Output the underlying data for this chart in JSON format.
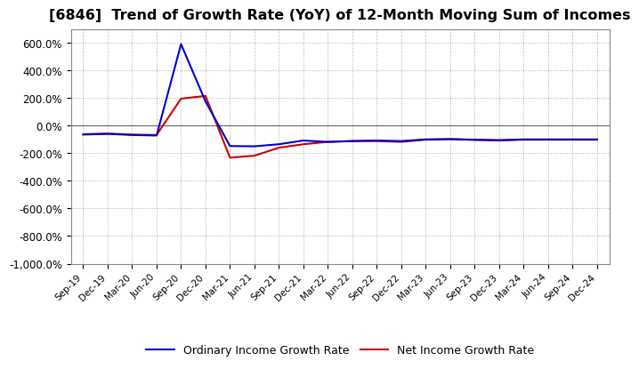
{
  "title": "[6846]  Trend of Growth Rate (YoY) of 12-Month Moving Sum of Incomes",
  "title_fontsize": 11.5,
  "ylim": [
    -1000,
    700
  ],
  "yticks": [
    -1000,
    -800,
    -600,
    -400,
    -200,
    0,
    200,
    400,
    600
  ],
  "background_color": "#ffffff",
  "plot_bg_color": "#ffffff",
  "grid_color": "#aaaaaa",
  "ordinary_color": "#0000cc",
  "net_color": "#cc0000",
  "legend_ordinary": "Ordinary Income Growth Rate",
  "legend_net": "Net Income Growth Rate",
  "x_labels": [
    "Sep-19",
    "Dec-19",
    "Mar-20",
    "Jun-20",
    "Sep-20",
    "Dec-20",
    "Mar-21",
    "Jun-21",
    "Sep-21",
    "Dec-21",
    "Mar-22",
    "Jun-22",
    "Sep-22",
    "Dec-22",
    "Mar-23",
    "Jun-23",
    "Sep-23",
    "Dec-23",
    "Mar-24",
    "Jun-24",
    "Sep-24",
    "Dec-24"
  ],
  "ordinary_income": [
    -65,
    -60,
    -68,
    -72,
    590,
    175,
    -148,
    -150,
    -135,
    -108,
    -118,
    -112,
    -108,
    -112,
    -100,
    -98,
    -102,
    -105,
    -100,
    -100,
    -100,
    -100
  ],
  "net_income": [
    -62,
    -58,
    -65,
    -68,
    195,
    215,
    -232,
    -218,
    -160,
    -135,
    -118,
    -112,
    -112,
    -118,
    -102,
    -98,
    -104,
    -108,
    -102,
    -102,
    -102,
    -102
  ]
}
